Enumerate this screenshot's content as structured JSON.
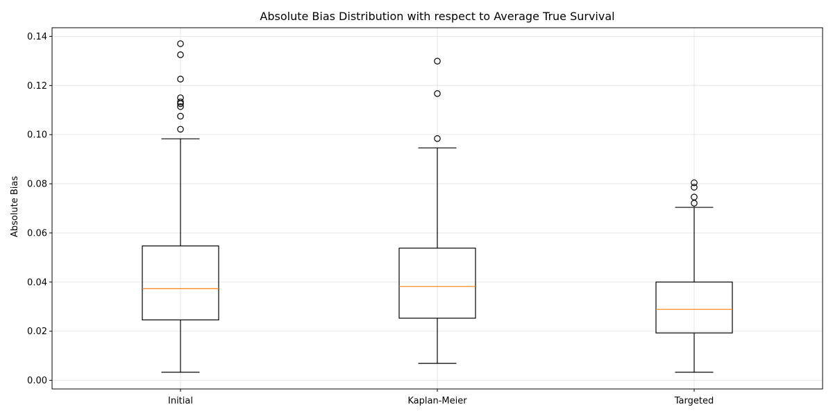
{
  "chart_data": {
    "type": "box",
    "title": "Absolute Bias Distribution with respect to Average True Survival",
    "xlabel": "",
    "ylabel": "Absolute Bias",
    "ylim": [
      -0.0035,
      0.1435
    ],
    "yticks": [
      0.0,
      0.02,
      0.04,
      0.06,
      0.08,
      0.1,
      0.12,
      0.14
    ],
    "ytick_labels": [
      "0.00",
      "0.02",
      "0.04",
      "0.06",
      "0.08",
      "0.10",
      "0.12",
      "0.14"
    ],
    "grid": true,
    "categories": [
      "Initial",
      "Kaplan-Meier",
      "Targeted"
    ],
    "boxes": [
      {
        "category": "Initial",
        "whisker_low": 0.0033,
        "q1": 0.0246,
        "median": 0.0373,
        "q3": 0.0547,
        "whisker_high": 0.0983,
        "outliers": [
          0.1022,
          0.1075,
          0.1114,
          0.1126,
          0.1133,
          0.115,
          0.1226,
          0.1325,
          0.137
        ]
      },
      {
        "category": "Kaplan-Meier",
        "whisker_low": 0.0069,
        "q1": 0.0253,
        "median": 0.0382,
        "q3": 0.0538,
        "whisker_high": 0.0946,
        "outliers": [
          0.0984,
          0.1167,
          0.1299
        ]
      },
      {
        "category": "Targeted",
        "whisker_low": 0.0033,
        "q1": 0.0193,
        "median": 0.0289,
        "q3": 0.04,
        "whisker_high": 0.0704,
        "outliers": [
          0.0721,
          0.0746,
          0.0786,
          0.0804
        ]
      }
    ],
    "colors": {
      "box": "#000000",
      "median": "#ff7f0e",
      "grid": "#e6e6e6"
    }
  }
}
